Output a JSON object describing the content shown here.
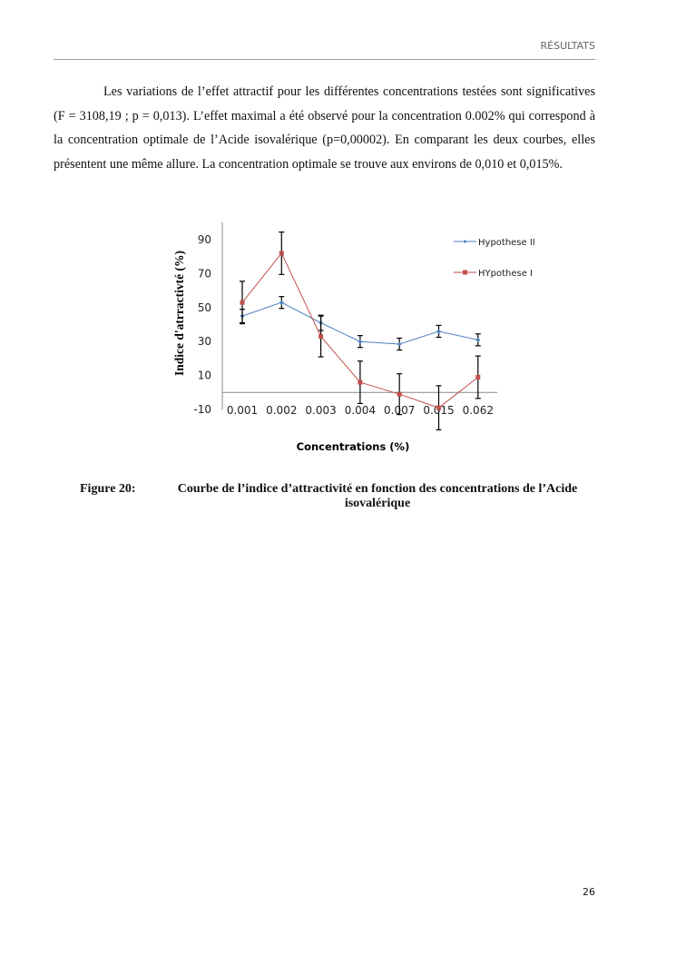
{
  "header": {
    "section": "RÉSULTATS"
  },
  "paragraph": "Les variations de l’effet attractif pour les différentes concentrations testées sont significatives (F = 3108,19 ; p = 0,013). L’effet maximal a été observé pour la concentration 0.002% qui correspond à la concentration optimale de l’Acide isovalérique (p=0,00002). En comparant les deux courbes, elles présentent une même allure. La concentration optimale se trouve aux environs de 0,010 et 0,015%.",
  "chart_data": {
    "type": "line",
    "xlabel": "Concentrations (%)",
    "ylabel": "Indice d'atrractivté (%)",
    "categories": [
      "0.001",
      "0.002",
      "0.003",
      "0.004",
      "0.007",
      "0.015",
      "0.062"
    ],
    "yticks": [
      -10,
      10,
      30,
      50,
      70,
      90
    ],
    "ylim": [
      -10,
      100
    ],
    "legend_position": "top-right",
    "grid": false,
    "series": [
      {
        "name": "Hypothese II",
        "color": "#4f81bd",
        "marker": "diamond",
        "values": [
          45,
          53,
          41,
          30,
          28.5,
          36,
          31
        ],
        "errors": [
          4,
          3.5,
          4.5,
          3.5,
          3.5,
          3.5,
          3.5
        ]
      },
      {
        "name": "HYpothese I",
        "color": "#c0504d",
        "marker": "square",
        "values": [
          53,
          82,
          33,
          6,
          -1,
          -9,
          9
        ],
        "errors": [
          12.5,
          12.5,
          12,
          12.5,
          12,
          13,
          12.5
        ]
      }
    ]
  },
  "caption": {
    "label": "Figure 20:",
    "text": "Courbe de l’indice d’attractivité en fonction des concentrations de l’Acide isovalérique"
  },
  "page_number": "26"
}
